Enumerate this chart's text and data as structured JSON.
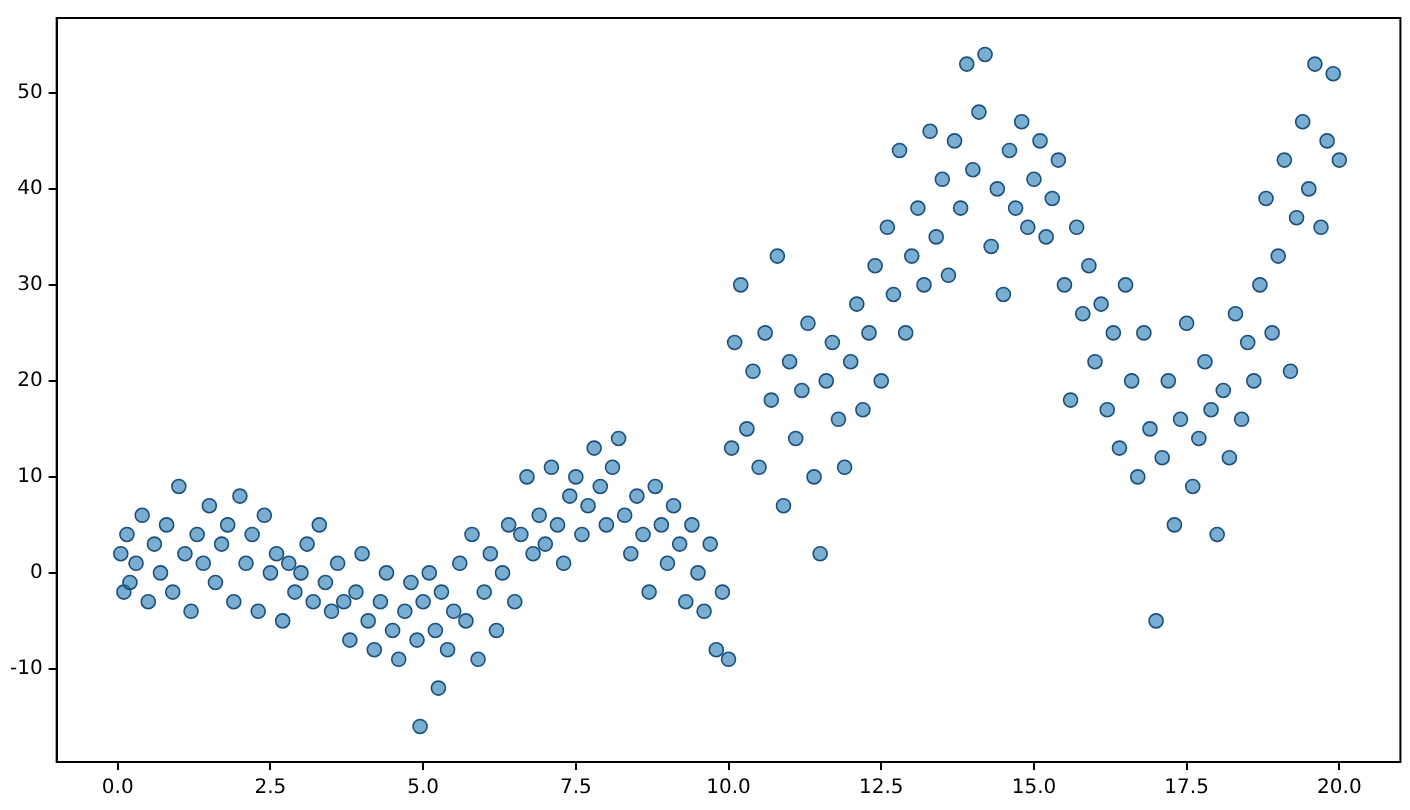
{
  "chart_data": {
    "type": "scatter",
    "color": "#1f77b4",
    "marker": "circle",
    "grid": false,
    "legend": false,
    "x": [
      0.05,
      0.1,
      0.15,
      0.2,
      0.3,
      0.4,
      0.5,
      0.6,
      0.7,
      0.8,
      0.9,
      1.0,
      1.1,
      1.2,
      1.3,
      1.4,
      1.5,
      1.6,
      1.7,
      1.8,
      1.9,
      2.0,
      2.1,
      2.2,
      2.3,
      2.4,
      2.5,
      2.6,
      2.7,
      2.8,
      2.9,
      3.0,
      3.1,
      3.2,
      3.3,
      3.4,
      3.5,
      3.6,
      3.7,
      3.8,
      3.9,
      4.0,
      4.1,
      4.2,
      4.3,
      4.4,
      4.5,
      4.6,
      4.7,
      4.8,
      4.9,
      4.95,
      5.0,
      5.1,
      5.2,
      5.25,
      5.3,
      5.4,
      5.5,
      5.6,
      5.7,
      5.8,
      5.9,
      6.0,
      6.1,
      6.2,
      6.3,
      6.4,
      6.5,
      6.6,
      6.7,
      6.8,
      6.9,
      7.0,
      7.1,
      7.2,
      7.3,
      7.4,
      7.5,
      7.6,
      7.7,
      7.8,
      7.9,
      8.0,
      8.1,
      8.2,
      8.3,
      8.4,
      8.5,
      8.6,
      8.7,
      8.8,
      8.9,
      9.0,
      9.1,
      9.2,
      9.3,
      9.4,
      9.5,
      9.6,
      9.7,
      9.8,
      9.9,
      10.0,
      10.05,
      10.1,
      10.2,
      10.3,
      10.4,
      10.5,
      10.6,
      10.7,
      10.8,
      10.9,
      11.0,
      11.1,
      11.2,
      11.3,
      11.4,
      11.5,
      11.6,
      11.7,
      11.8,
      11.9,
      12.0,
      12.1,
      12.2,
      12.3,
      12.4,
      12.5,
      12.6,
      12.7,
      12.8,
      12.9,
      13.0,
      13.1,
      13.2,
      13.3,
      13.4,
      13.5,
      13.6,
      13.7,
      13.8,
      13.9,
      14.0,
      14.1,
      14.2,
      14.3,
      14.4,
      14.5,
      14.6,
      14.7,
      14.8,
      14.9,
      15.0,
      15.1,
      15.2,
      15.3,
      15.4,
      15.5,
      15.6,
      15.7,
      15.8,
      15.9,
      16.0,
      16.1,
      16.2,
      16.3,
      16.4,
      16.5,
      16.6,
      16.7,
      16.8,
      16.9,
      17.0,
      17.1,
      17.2,
      17.3,
      17.4,
      17.5,
      17.6,
      17.7,
      17.8,
      17.9,
      18.0,
      18.1,
      18.2,
      18.3,
      18.4,
      18.5,
      18.6,
      18.7,
      18.8,
      18.9,
      19.0,
      19.1,
      19.2,
      19.3,
      19.4,
      19.5,
      19.6,
      19.7,
      19.8,
      19.9,
      20.0
    ],
    "values": [
      2,
      -2,
      4,
      -1,
      1,
      6,
      -3,
      3,
      0,
      5,
      -2,
      9,
      2,
      -4,
      4,
      1,
      7,
      -1,
      3,
      5,
      -3,
      8,
      1,
      4,
      -4,
      6,
      0,
      2,
      -5,
      1,
      -2,
      0,
      3,
      -3,
      5,
      -1,
      -4,
      1,
      -3,
      -7,
      -2,
      2,
      -5,
      -8,
      -3,
      0,
      -6,
      -9,
      -4,
      -1,
      -7,
      -16,
      -3,
      0,
      -6,
      -12,
      -2,
      -8,
      -4,
      1,
      -5,
      4,
      -9,
      -2,
      2,
      -6,
      0,
      5,
      -3,
      4,
      10,
      2,
      6,
      3,
      11,
      5,
      1,
      8,
      10,
      4,
      7,
      13,
      9,
      5,
      11,
      14,
      6,
      2,
      8,
      4,
      -2,
      9,
      5,
      1,
      7,
      3,
      -3,
      5,
      0,
      -4,
      3,
      -8,
      -2,
      -9,
      13,
      24,
      30,
      15,
      21,
      11,
      25,
      18,
      33,
      7,
      22,
      14,
      19,
      26,
      10,
      2,
      20,
      24,
      16,
      11,
      22,
      28,
      17,
      25,
      32,
      20,
      36,
      29,
      44,
      25,
      33,
      38,
      30,
      46,
      35,
      41,
      31,
      45,
      38,
      53,
      42,
      48,
      54,
      34,
      40,
      29,
      44,
      38,
      47,
      36,
      41,
      45,
      35,
      39,
      43,
      30,
      18,
      36,
      27,
      32,
      22,
      28,
      17,
      25,
      13,
      30,
      20,
      10,
      25,
      15,
      -5,
      12,
      20,
      5,
      16,
      26,
      9,
      14,
      22,
      17,
      4,
      19,
      12,
      27,
      16,
      24,
      20,
      30,
      39,
      25,
      33,
      43,
      21,
      37,
      47,
      40,
      53,
      36,
      45,
      52,
      43
    ],
    "xlim": [
      -1,
      21
    ],
    "ylim": [
      -19.7,
      57.8
    ],
    "xticks": [
      {
        "value": 0,
        "label": "0.0"
      },
      {
        "value": 2.5,
        "label": "2.5"
      },
      {
        "value": 5,
        "label": "5.0"
      },
      {
        "value": 7.5,
        "label": "7.5"
      },
      {
        "value": 10,
        "label": "10.0"
      },
      {
        "value": 12.5,
        "label": "12.5"
      },
      {
        "value": 15,
        "label": "15.0"
      },
      {
        "value": 17.5,
        "label": "17.5"
      },
      {
        "value": 20,
        "label": "20.0"
      }
    ],
    "yticks": [
      -10,
      0,
      10,
      20,
      30,
      40,
      50
    ]
  }
}
